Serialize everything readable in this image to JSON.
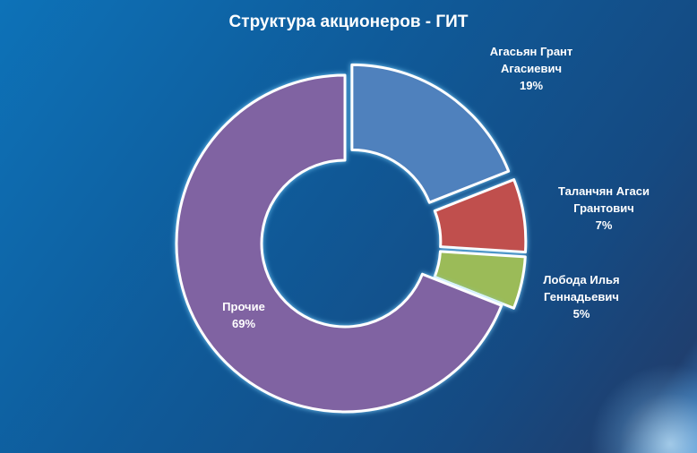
{
  "chart_data": {
    "type": "pie",
    "title": "Структура акционеров - ГИТ",
    "categories": [
      "Агасьян Грант Агасиевич",
      "Таланчян  Агаси Грантович",
      "Лобода Илья Геннадьевич",
      "Прочие"
    ],
    "values": [
      19,
      7,
      5,
      69
    ],
    "value_labels": [
      "19%",
      "7%",
      "5%",
      "69%"
    ],
    "label_lines": [
      [
        "Агасьян Грант",
        "Агасиевич",
        "19%"
      ],
      [
        "Таланчян  Агаси",
        "Грантович",
        "7%"
      ],
      [
        "Лобода Илья",
        "Геннадьевич",
        "5%"
      ],
      [
        "Прочие",
        "69%"
      ]
    ],
    "colors": [
      "#4f81bd",
      "#c0504d",
      "#9bbb59",
      "#8064a2"
    ],
    "exploded": [
      true,
      true,
      true,
      false
    ],
    "donut": true,
    "legend": "none"
  }
}
